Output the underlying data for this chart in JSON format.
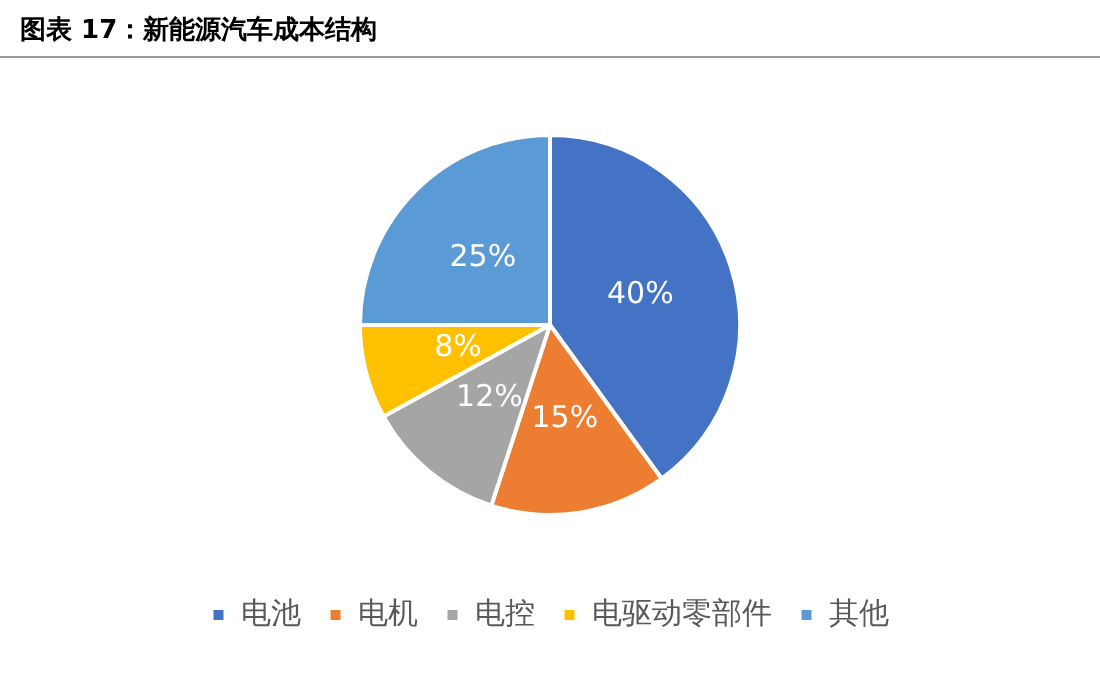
{
  "chart_data": {
    "type": "pie",
    "title": "图表 17：新能源汽车成本结构",
    "categories": [
      "电池",
      "电机",
      "电控",
      "电驱动零部件",
      "其他"
    ],
    "values": [
      40,
      15,
      12,
      8,
      25
    ],
    "value_labels": [
      "40%",
      "15%",
      "12%",
      "8%",
      "25%"
    ],
    "colors": [
      "#4472c4",
      "#ed7d31",
      "#a5a5a5",
      "#ffc000",
      "#5b9bd5"
    ],
    "legend": "bottom"
  }
}
